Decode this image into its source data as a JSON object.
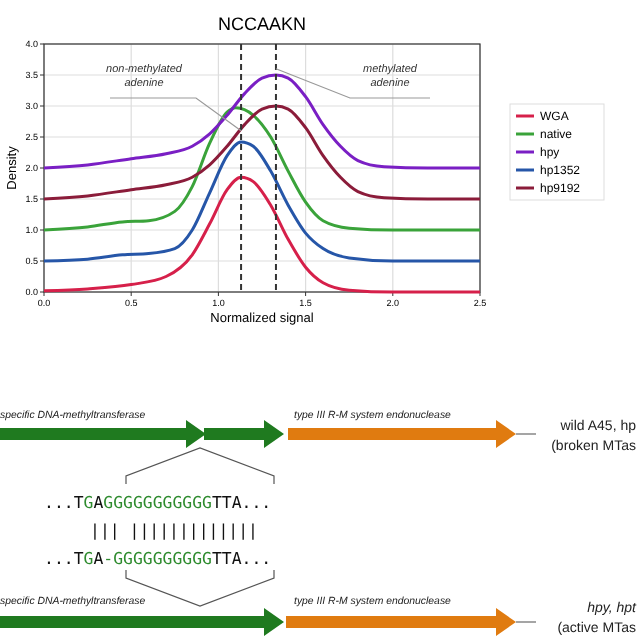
{
  "chart_data": {
    "type": "line",
    "title": "NCCAAKN",
    "xlabel": "Normalized signal",
    "ylabel": "Density",
    "xlim": [
      0,
      2.5
    ],
    "ylim": [
      0,
      4
    ],
    "xticks": [
      {
        "value": 0,
        "label": "0.0"
      },
      0.5,
      {
        "value": 1,
        "label": "1.0"
      },
      1.5,
      {
        "value": 2,
        "label": "2.0"
      },
      2.5
    ],
    "yticks": [
      {
        "value": 0,
        "label": "0.0"
      },
      0.5,
      {
        "value": 1,
        "label": "1.0"
      },
      1.5,
      {
        "value": 2,
        "label": "2.0"
      },
      2.5,
      {
        "value": 3,
        "label": "3.0"
      },
      3.5,
      {
        "value": 4,
        "label": "4.0"
      }
    ],
    "grid": true,
    "legend": "right",
    "x": [
      0,
      0.25,
      0.5,
      0.7,
      0.85,
      0.95,
      1.05,
      1.13,
      1.2,
      1.3,
      1.4,
      1.5,
      1.6,
      1.75,
      2.0,
      2.5
    ],
    "series": [
      {
        "name": "WGA",
        "color": "#d6204a",
        "values": [
          0.02,
          0.05,
          0.12,
          0.25,
          0.6,
          1.1,
          1.65,
          1.85,
          1.78,
          1.4,
          0.85,
          0.4,
          0.15,
          0.03,
          0,
          0
        ]
      },
      {
        "name": "native",
        "color": "#3aa33a",
        "x": [
          0,
          0.25,
          0.45,
          0.6,
          0.75,
          0.85,
          0.95,
          1.05,
          1.1,
          1.2,
          1.3,
          1.4,
          1.5,
          1.6,
          1.75,
          2.0,
          2.5
        ],
        "values": [
          1,
          1.05,
          1.13,
          1.15,
          1.3,
          1.7,
          2.4,
          2.9,
          2.97,
          2.85,
          2.5,
          1.95,
          1.45,
          1.15,
          1.03,
          1,
          1
        ]
      },
      {
        "name": "hpy",
        "color": "#7a1fc4",
        "x": [
          0,
          0.25,
          0.5,
          0.7,
          0.85,
          0.95,
          1.05,
          1.15,
          1.25,
          1.33,
          1.4,
          1.5,
          1.6,
          1.7,
          1.8,
          1.95,
          2.2,
          2.5
        ],
        "values": [
          2,
          2.05,
          2.15,
          2.23,
          2.35,
          2.55,
          2.85,
          3.2,
          3.45,
          3.5,
          3.45,
          3.15,
          2.7,
          2.35,
          2.12,
          2.02,
          2,
          2
        ]
      },
      {
        "name": "hp1352",
        "color": "#2656a8",
        "x": [
          0,
          0.25,
          0.45,
          0.6,
          0.75,
          0.85,
          0.95,
          1.05,
          1.13,
          1.2,
          1.3,
          1.4,
          1.5,
          1.6,
          1.75,
          2.0,
          2.5
        ],
        "values": [
          0.5,
          0.53,
          0.6,
          0.62,
          0.7,
          1,
          1.6,
          2.2,
          2.42,
          2.35,
          1.95,
          1.4,
          0.95,
          0.7,
          0.55,
          0.5,
          0.5
        ]
      },
      {
        "name": "hp9192",
        "color": "#8b1c3a",
        "x": [
          0,
          0.25,
          0.5,
          0.7,
          0.85,
          0.95,
          1.05,
          1.15,
          1.25,
          1.33,
          1.4,
          1.5,
          1.6,
          1.7,
          1.8,
          1.95,
          2.2,
          2.5
        ],
        "values": [
          1.5,
          1.55,
          1.65,
          1.73,
          1.85,
          2.05,
          2.35,
          2.7,
          2.95,
          3,
          2.95,
          2.65,
          2.2,
          1.85,
          1.62,
          1.52,
          1.5,
          1.5
        ]
      }
    ],
    "ref_lines": [
      {
        "axis": "x",
        "value": 1.13,
        "line_style": "dashed",
        "color": "#333333"
      },
      {
        "axis": "x",
        "value": 1.33,
        "line_style": "dashed",
        "color": "#333333"
      }
    ],
    "annotations": [
      {
        "text": "non-methylated adenine",
        "x": 1.13,
        "y": 2.6
      },
      {
        "text": "methylated adenine",
        "x": 1.33,
        "y": 3.6
      },
      "specific DNA-methyltransferase",
      "type III R-M system endonuclease",
      "wild A45, hp",
      "(broken MTas",
      "...TGAGGGGGGGGGGGTTA...",
      "||| |||||||||||||",
      "...TGA-GGGGGGGGGGTTA...",
      "specific DNA-methyltransferase",
      "type III R-M system endonuclease",
      "hpy, hpt",
      "(active MTas"
    ]
  }
}
